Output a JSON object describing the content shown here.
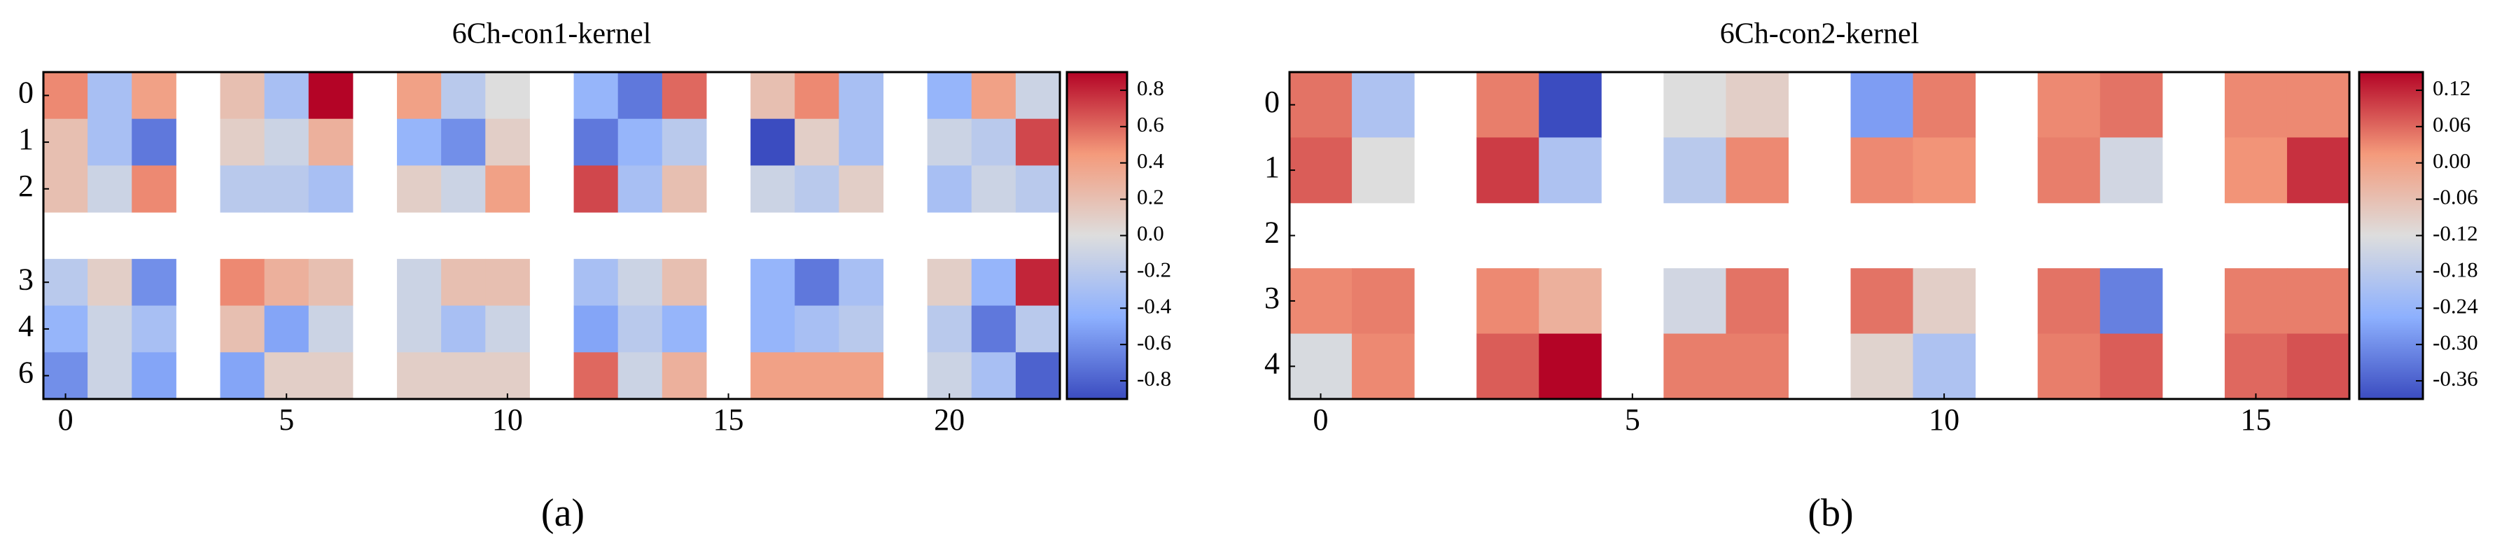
{
  "chart_data": [
    {
      "type": "heatmap",
      "title": "6Ch-con1-kernel",
      "caption": "(a)",
      "colormap": [
        "#3b4cc0",
        "#8db0fe",
        "#dddddd",
        "#f49a7b",
        "#b40426"
      ],
      "xlim": [
        -0.5,
        22.5
      ],
      "xticks": [
        0,
        5,
        10,
        15,
        20
      ],
      "y_categories": [
        "0",
        "1",
        "2",
        null,
        "3",
        "4",
        "6"
      ],
      "zlim": [
        -0.9,
        0.9
      ],
      "zticks": [
        0.8,
        0.6,
        0.4,
        0.2,
        {
          "value": 0,
          "label": "0.0"
        },
        -0.2,
        -0.4,
        -0.6,
        -0.8
      ],
      "values": [
        [
          0.5,
          -0.3,
          0.4,
          null,
          0.2,
          -0.3,
          0.9,
          null,
          0.4,
          -0.2,
          0.0,
          null,
          -0.4,
          -0.7,
          0.6,
          null,
          0.2,
          0.5,
          -0.3,
          null,
          -0.4,
          0.4,
          -0.1
        ],
        [
          0.2,
          -0.3,
          -0.7,
          null,
          0.1,
          -0.1,
          0.3,
          null,
          -0.4,
          -0.6,
          0.1,
          null,
          -0.7,
          -0.4,
          -0.2,
          null,
          -0.9,
          0.1,
          -0.3,
          null,
          -0.1,
          -0.2,
          0.7
        ],
        [
          0.2,
          -0.1,
          0.5,
          null,
          -0.2,
          -0.2,
          -0.3,
          null,
          0.1,
          -0.1,
          0.4,
          null,
          0.7,
          -0.3,
          0.2,
          null,
          -0.1,
          -0.2,
          0.1,
          null,
          -0.3,
          -0.1,
          -0.2
        ],
        [
          null,
          null,
          null,
          null,
          null,
          null,
          null,
          null,
          null,
          null,
          null,
          null,
          null,
          null,
          null,
          null,
          null,
          null,
          null,
          null,
          null,
          null,
          null
        ],
        [
          -0.2,
          0.1,
          -0.6,
          null,
          0.5,
          0.3,
          0.2,
          null,
          -0.1,
          0.2,
          0.2,
          null,
          -0.3,
          -0.1,
          0.2,
          null,
          -0.4,
          -0.7,
          -0.3,
          null,
          0.1,
          -0.4,
          0.8
        ],
        [
          -0.4,
          -0.1,
          -0.3,
          null,
          0.2,
          -0.5,
          -0.1,
          null,
          -0.1,
          -0.3,
          -0.1,
          null,
          -0.5,
          -0.2,
          -0.4,
          null,
          -0.4,
          -0.3,
          -0.2,
          null,
          -0.2,
          -0.7,
          -0.2
        ],
        [
          -0.6,
          -0.1,
          -0.5,
          null,
          -0.5,
          0.1,
          0.1,
          null,
          0.1,
          0.1,
          0.1,
          null,
          0.6,
          -0.1,
          0.3,
          null,
          0.4,
          0.4,
          0.4,
          null,
          -0.1,
          -0.3,
          -0.8
        ]
      ]
    },
    {
      "type": "heatmap",
      "title": "6Ch-con2-kernel",
      "caption": "(b)",
      "colormap": [
        "#3b4cc0",
        "#8db0fe",
        "#dddddd",
        "#f49a7b",
        "#b40426"
      ],
      "xlim": [
        -0.5,
        16.5
      ],
      "xticks": [
        0,
        5,
        10,
        15
      ],
      "y_categories": [
        "0",
        "1",
        "2",
        "3",
        "4"
      ],
      "zlim": [
        -0.39,
        0.15
      ],
      "zticks": [
        0.12,
        0.06,
        {
          "value": 0,
          "label": "0.00"
        },
        -0.06,
        -0.12,
        -0.18,
        -0.24,
        {
          "value": -0.3,
          "label": "-0.30"
        },
        -0.36
      ],
      "values": [
        [
          0.05,
          -0.2,
          null,
          0.04,
          -0.39,
          null,
          -0.12,
          -0.09,
          null,
          -0.28,
          0.04,
          null,
          0.03,
          0.05,
          null,
          0.03,
          0.03
        ],
        [
          0.07,
          -0.12,
          null,
          0.1,
          -0.2,
          null,
          -0.18,
          0.03,
          null,
          0.03,
          0.02,
          null,
          0.04,
          -0.14,
          null,
          0.02,
          0.11
        ],
        [
          null,
          null,
          null,
          null,
          null,
          null,
          null,
          null,
          null,
          null,
          null,
          null,
          null,
          null,
          null,
          null,
          null
        ],
        [
          0.03,
          0.04,
          null,
          0.03,
          -0.03,
          null,
          -0.14,
          0.05,
          null,
          0.05,
          -0.09,
          null,
          0.05,
          -0.32,
          null,
          0.04,
          0.04
        ],
        [
          -0.13,
          0.03,
          null,
          0.07,
          0.15,
          null,
          0.04,
          0.04,
          null,
          -0.1,
          -0.2,
          null,
          0.04,
          0.07,
          null,
          0.06,
          0.08
        ]
      ]
    }
  ]
}
